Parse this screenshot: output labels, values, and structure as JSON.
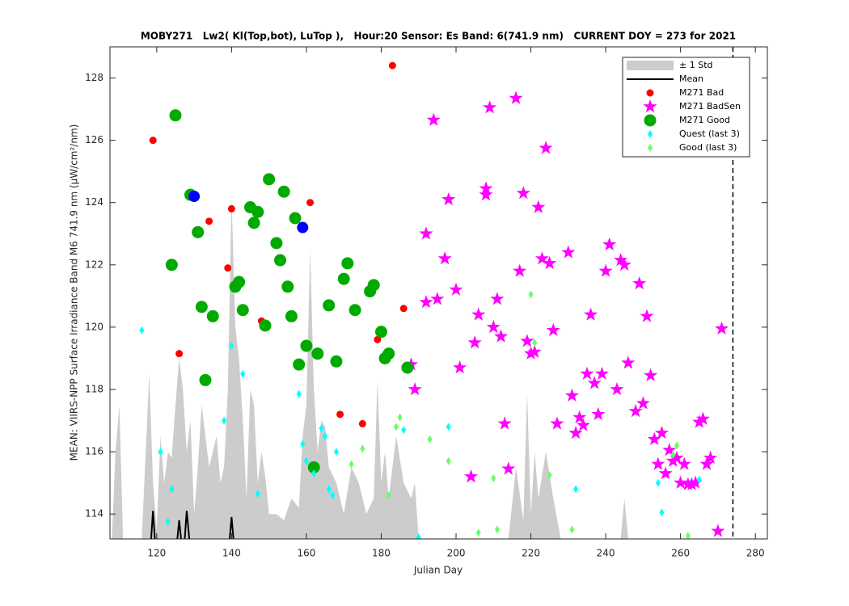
{
  "chart_data": {
    "type": "scatter",
    "title": "MOBY271   Lw2( Kl(Top,bot), LuTop ),   Hour:20 Sensor: Es Band: 6(741.9 nm)   CURRENT DOY = 273 for 2021",
    "x_label": "Julian Day",
    "y_label": "MEAN: VIIRS-NPP Surface Irradiance Band M6 741.9 nm (µW/cm²/nm)",
    "xlim": [
      107.5,
      283.2
    ],
    "ylim": [
      113.2,
      129
    ],
    "xticks": [
      120,
      140,
      160,
      180,
      200,
      220,
      240,
      260,
      280
    ],
    "yticks": [
      114,
      116,
      118,
      120,
      122,
      124,
      126,
      128
    ],
    "vline": 274,
    "legend": "upper right",
    "series": [
      {
        "name": "± 1 Std",
        "marker": "area",
        "color": "#cccccc",
        "x": [
          108,
          109,
          110,
          111,
          112,
          114,
          116,
          118,
          119,
          120,
          121,
          122,
          123,
          124,
          125,
          126,
          127,
          128,
          129,
          130,
          131,
          132,
          133,
          134,
          135,
          136,
          137,
          138,
          139,
          140,
          141,
          142,
          143,
          144,
          145,
          146,
          147,
          148,
          149,
          150,
          152,
          154,
          156,
          158,
          159,
          160,
          161,
          162,
          163,
          164,
          165,
          166,
          168,
          170,
          172,
          174,
          176,
          178,
          179,
          180,
          181,
          182,
          184,
          186,
          188,
          189,
          190,
          200,
          214,
          216,
          218,
          219,
          220,
          221,
          222,
          224,
          226,
          228,
          244,
          245,
          246,
          272
        ],
        "values": [
          113.2,
          116,
          117.5,
          113.2,
          113.2,
          113.2,
          113.2,
          118.5,
          115,
          113.5,
          116.5,
          115,
          116,
          115.8,
          117.5,
          119,
          118,
          116,
          117,
          114,
          115.5,
          117.5,
          116.5,
          115.5,
          116,
          116.5,
          115,
          115.5,
          118,
          124.2,
          120,
          119,
          117,
          114.5,
          118,
          117.5,
          115,
          116,
          115.2,
          114,
          114,
          113.8,
          114.5,
          114.2,
          116.5,
          117.5,
          122.5,
          118,
          116,
          117,
          116.8,
          115.5,
          115,
          114,
          115.5,
          115,
          114,
          114.5,
          118.3,
          115,
          116,
          114.5,
          116.5,
          115,
          114.5,
          115,
          113.2,
          113.2,
          113.2,
          115.5,
          113.8,
          117.9,
          114,
          116,
          114.5,
          116,
          114.5,
          113.2,
          113.2,
          114.5,
          113.2,
          113.2
        ]
      },
      {
        "name": "Mean",
        "marker": "line",
        "color": "#000000",
        "x": [
          118.5,
          119,
          119.5,
          123,
          125.5,
          126,
          126.5,
          127,
          127.5,
          128,
          128.7,
          134,
          139.5,
          140,
          140.5
        ],
        "values": [
          113.2,
          114.1,
          113.2,
          null,
          113.2,
          113.8,
          113.2,
          null,
          113.2,
          114.1,
          113.2,
          null,
          113.2,
          113.9,
          113.2
        ]
      },
      {
        "name": "M271 Bad",
        "marker": "circle",
        "marker_size": 4.5,
        "color": "#ff0000",
        "x": [
          119,
          126,
          134,
          139,
          140,
          148,
          161,
          169,
          175,
          179,
          183,
          186
        ],
        "values": [
          126,
          119.15,
          123.4,
          121.9,
          123.8,
          120.2,
          124,
          117.2,
          116.9,
          119.6,
          128.4,
          120.6
        ]
      },
      {
        "name": "M271 BadSen",
        "marker": "star",
        "marker_size": 9,
        "color": "#ff00ff",
        "x": [
          188,
          189,
          192,
          192,
          194,
          195,
          197,
          198,
          200,
          201,
          204,
          205,
          206,
          208,
          208,
          209,
          210,
          211,
          212,
          213,
          214,
          216,
          217,
          218,
          219,
          220,
          221,
          222,
          223,
          224,
          225,
          226,
          227,
          230,
          231,
          232,
          233,
          234,
          235,
          236,
          237,
          238,
          239,
          240,
          241,
          243,
          244,
          245,
          246,
          248,
          249,
          250,
          251,
          252,
          253,
          254,
          255,
          256,
          257,
          258,
          259,
          260,
          261,
          262,
          263,
          264,
          265,
          266,
          267,
          268,
          270,
          271
        ],
        "values": [
          118.8,
          118,
          123,
          120.8,
          126.65,
          120.9,
          122.2,
          124.1,
          121.2,
          118.7,
          115.2,
          119.5,
          120.4,
          124.25,
          124.45,
          127.05,
          120,
          120.9,
          119.7,
          116.9,
          115.45,
          127.35,
          121.8,
          124.3,
          119.55,
          119.15,
          119.2,
          123.85,
          122.2,
          125.75,
          122.05,
          119.9,
          116.9,
          122.4,
          117.8,
          116.6,
          117.1,
          116.85,
          118.5,
          120.4,
          118.2,
          117.2,
          118.5,
          121.8,
          122.65,
          118,
          122.15,
          122,
          118.85,
          117.3,
          121.4,
          117.55,
          120.35,
          118.45,
          116.4,
          115.6,
          116.6,
          115.3,
          116.05,
          115.7,
          115.8,
          115,
          115.6,
          114.95,
          114.95,
          115,
          116.95,
          117.05,
          115.6,
          115.8,
          113.45,
          119.95
        ]
      },
      {
        "name": "M271 Good",
        "marker": "circle",
        "marker_size": 7.5,
        "color": "#00aa00",
        "x": [
          124,
          125,
          129,
          131,
          132,
          133,
          135,
          141,
          142,
          143,
          145,
          146,
          147,
          149,
          150,
          152,
          153,
          154,
          155,
          156,
          157,
          158,
          160,
          162,
          163,
          166,
          168,
          170,
          171,
          173,
          177,
          178,
          180,
          181,
          182,
          187
        ],
        "values": [
          122,
          126.8,
          124.25,
          123.05,
          120.65,
          118.3,
          120.35,
          121.3,
          121.45,
          120.55,
          123.85,
          123.35,
          123.7,
          120.05,
          124.75,
          122.7,
          122.15,
          124.35,
          121.3,
          120.35,
          123.5,
          118.8,
          119.4,
          115.5,
          119.15,
          120.7,
          118.9,
          121.55,
          122.05,
          120.55,
          121.15,
          121.35,
          119.85,
          119,
          119.15,
          118.7
        ]
      },
      {
        "marker": "circle",
        "marker_size": 7,
        "color": "#0000ff",
        "x": [
          130,
          159
        ],
        "values": [
          124.2,
          123.2
        ]
      },
      {
        "name": "Quest (last 3)",
        "marker": "diamond",
        "marker_size": 5,
        "color": "#00ffff",
        "x": [
          116,
          121,
          123,
          124,
          138,
          140,
          143,
          147,
          158,
          159,
          160,
          162,
          164,
          165,
          166,
          167,
          168,
          186,
          190,
          198,
          232,
          254,
          255,
          265
        ],
        "values": [
          119.9,
          116,
          113.75,
          114.8,
          117,
          119.4,
          118.5,
          114.65,
          117.85,
          116.25,
          115.7,
          115.3,
          116.75,
          116.5,
          114.8,
          114.6,
          116,
          116.7,
          113.25,
          116.8,
          114.8,
          115,
          114.05,
          115.1
        ]
      },
      {
        "name": "Good (last 3)",
        "marker": "diamond",
        "marker_size": 5,
        "color": "#66ff66",
        "x": [
          172,
          175,
          182,
          184,
          185,
          193,
          198,
          206,
          210,
          211,
          220,
          221,
          225,
          231,
          258,
          259,
          262
        ],
        "values": [
          115.6,
          116.1,
          114.6,
          116.8,
          117.1,
          116.4,
          115.7,
          113.4,
          115.15,
          113.5,
          121.05,
          119.5,
          115.25,
          113.5,
          115.9,
          116.2,
          113.3
        ]
      }
    ]
  }
}
